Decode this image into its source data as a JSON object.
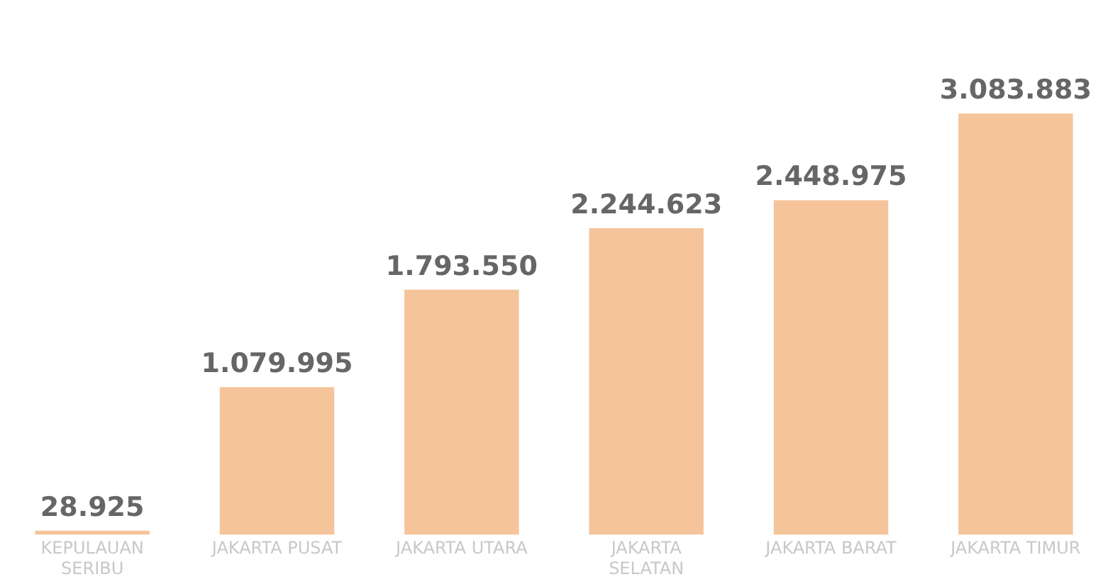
{
  "chart_data": {
    "type": "bar",
    "categories": [
      "KEPULAUAN SERIBU",
      "JAKARTA PUSAT",
      "JAKARTA UTARA",
      "JAKARTA SELATAN",
      "JAKARTA BARAT",
      "JAKARTA TIMUR"
    ],
    "values": [
      28925,
      1079995,
      1793550,
      2244623,
      2448975,
      3083883
    ],
    "value_labels": [
      "28.925",
      "1.079.995",
      "1.793.550",
      "2.244.623",
      "2.448.975",
      "3.083.883"
    ],
    "color": "#f5c49a",
    "grid": false,
    "legend": false,
    "tick_labels": "x"
  }
}
